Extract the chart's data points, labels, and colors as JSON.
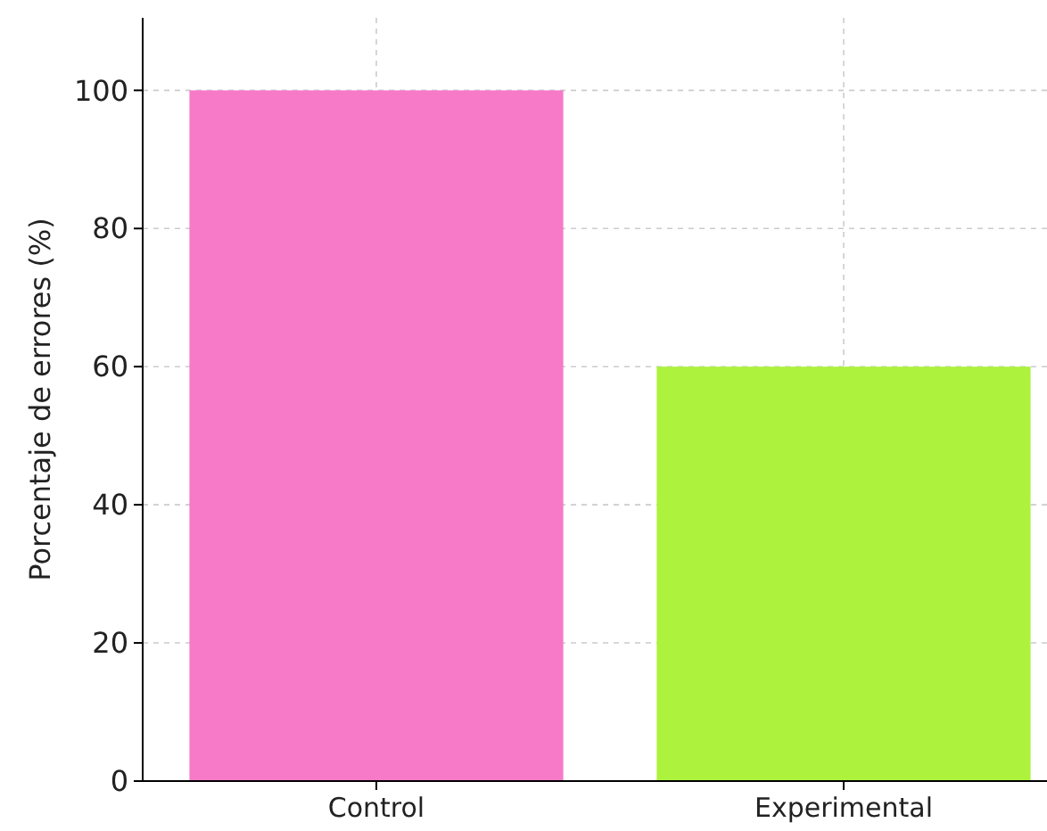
{
  "chart_data": {
    "type": "bar",
    "ylabel": "Porcentaje de errores (%)",
    "categories": [
      "Control",
      "Experimental"
    ],
    "values": [
      100,
      60
    ],
    "colors": [
      "#f67ac8",
      "#adf23c"
    ],
    "ylim": [
      0,
      110.5
    ],
    "yticks": [
      0,
      20,
      40,
      60,
      80,
      100
    ],
    "grid": true
  }
}
